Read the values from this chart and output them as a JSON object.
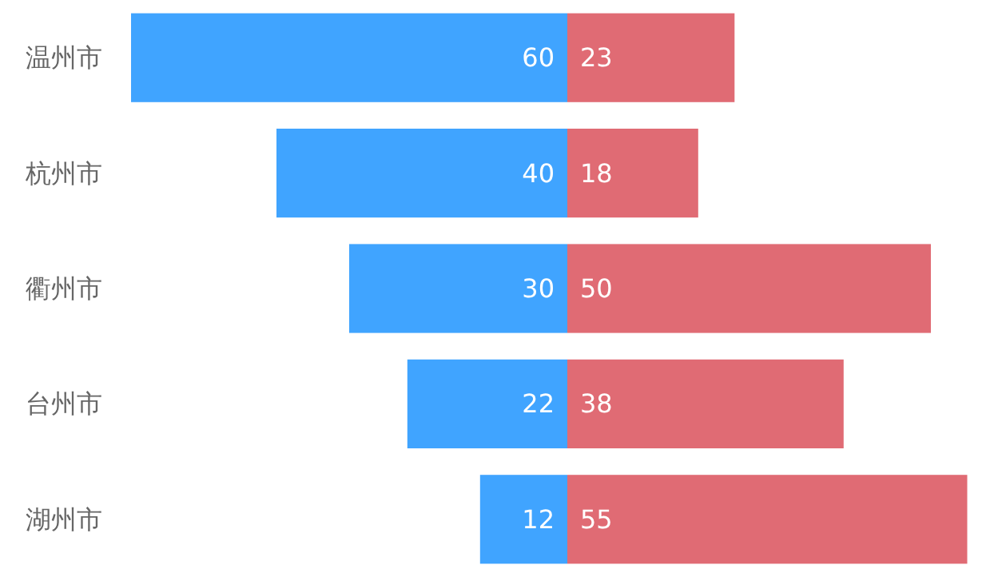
{
  "chart_data": [
    {
      "type": "bar",
      "orientation": "horizontal",
      "data_labels": true,
      "tick_labels": "y",
      "xlim": [
        60,
        0
      ],
      "color": "#40a4ff",
      "categories": [
        "温州市",
        "杭州市",
        "衢州市",
        "台州市",
        "湖州市"
      ],
      "values": [
        60,
        40,
        30,
        22,
        12
      ]
    },
    {
      "type": "bar",
      "orientation": "horizontal",
      "data_labels": true,
      "tick_labels": false,
      "xlim": [
        0,
        55
      ],
      "color": "#e06b74",
      "categories": [
        null,
        null,
        null,
        null,
        null
      ],
      "values": [
        23,
        18,
        50,
        38,
        55
      ]
    }
  ]
}
